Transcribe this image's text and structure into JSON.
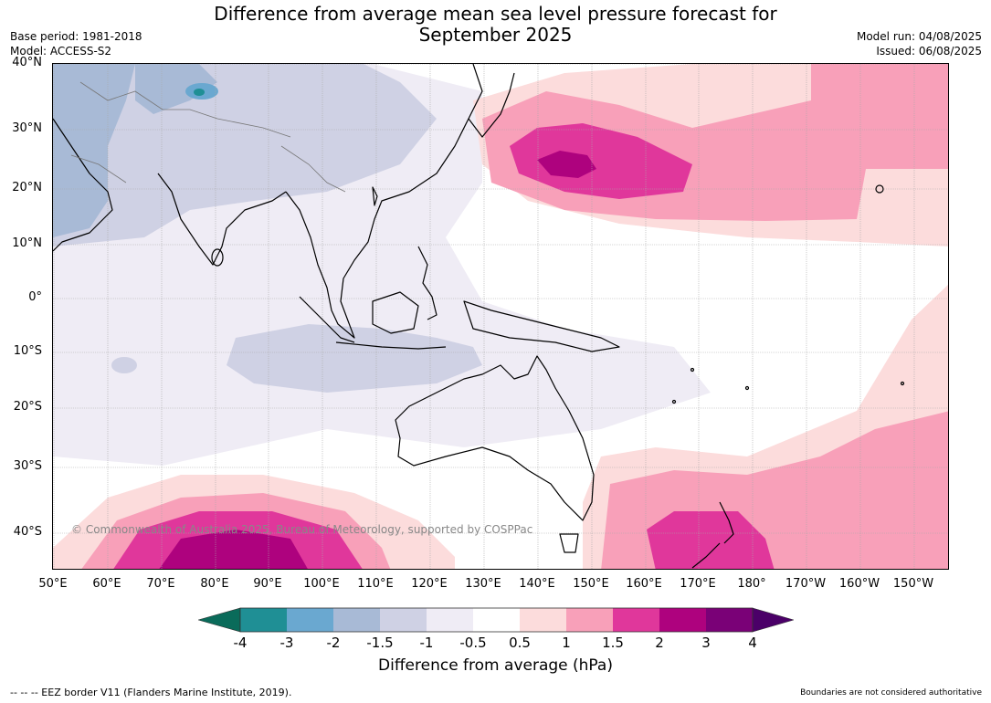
{
  "title": "Difference from average mean sea level pressure forecast for\nSeptember 2025",
  "meta_left": {
    "base_period": "Base period: 1981-2018",
    "model": "Model: ACCESS-S2"
  },
  "meta_right": {
    "model_run": "Model run: 04/08/2025",
    "issued": "Issued: 06/08/2025"
  },
  "lat_labels": [
    "40°N",
    "30°N",
    "20°N",
    "10°N",
    "0°",
    "10°S",
    "20°S",
    "30°S",
    "40°S"
  ],
  "lon_labels": [
    "50°E",
    "60°E",
    "70°E",
    "80°E",
    "90°E",
    "100°E",
    "110°E",
    "120°E",
    "130°E",
    "140°E",
    "150°E",
    "160°E",
    "170°E",
    "180°",
    "170°W",
    "160°W",
    "150°W"
  ],
  "copyright": "© Commonwealth of Australia 2025, Bureau of Meteorology, supported by COSPPac",
  "colorbar": {
    "ticks": [
      "-4",
      "-3",
      "-2",
      "-1.5",
      "-1",
      "-0.5",
      "0.5",
      "1",
      "1.5",
      "2",
      "3",
      "4"
    ],
    "colors": {
      "below_-4": "#0a6b5a",
      "-4_-3": "#1f8f95",
      "-3_-2": "#6aa8d0",
      "-2_-1.5": "#a8bad6",
      "-1.5_-1": "#cfd1e4",
      "-1_-0.5": "#efecf5",
      "-0.5_0.5": "#ffffff",
      "0.5_1": "#fcdcdc",
      "1_1.5": "#f8a0b9",
      "1.5_2": "#e0379b",
      "2_3": "#ae027e",
      "3_4": "#7a0177",
      "above_4": "#4b0068"
    },
    "label": "Difference from average (hPa)"
  },
  "eez_note": "--  --  -- EEZ border V11 (Flanders Marine Institute, 2019).",
  "disclaimer": "Boundaries are not considered authoritative",
  "map_extent": {
    "lon_min": 50,
    "lon_max": 210,
    "lat_min": -45,
    "lat_max": 40
  }
}
